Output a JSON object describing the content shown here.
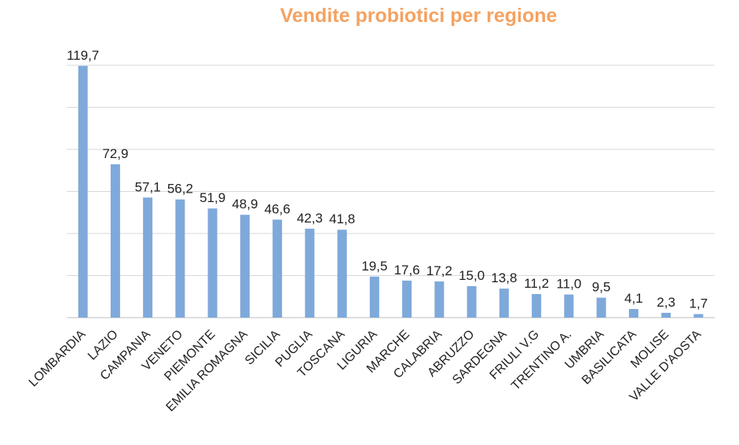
{
  "chart_data": {
    "type": "bar",
    "title": "Vendite probiotici per regione",
    "xlabel": "",
    "ylabel": "",
    "ylim": [
      0,
      120
    ],
    "grid": true,
    "categories": [
      "LOMBARDIA",
      "LAZIO",
      "CAMPANIA",
      "VENETO",
      "PIEMONTE",
      "EMILIA ROMAGNA",
      "SICILIA",
      "PUGLIA",
      "TOSCANA",
      "LIGURIA",
      "MARCHE",
      "CALABRIA",
      "ABRUZZO",
      "SARDEGNA",
      "FRIULI V.G",
      "TRENTINO A.",
      "UMBRIA",
      "BASILICATA",
      "MOLISE",
      "VALLE D'AOSTA"
    ],
    "values": [
      119.7,
      72.9,
      57.1,
      56.2,
      51.9,
      48.9,
      46.6,
      42.3,
      41.8,
      19.5,
      17.6,
      17.2,
      15.0,
      13.8,
      11.2,
      11.0,
      9.5,
      4.1,
      2.3,
      1.7
    ],
    "value_labels": [
      "119,7",
      "72,9",
      "57,1",
      "56,2",
      "51,9",
      "48,9",
      "46,6",
      "42,3",
      "41,8",
      "19,5",
      "17,6",
      "17,2",
      "15,0",
      "13,8",
      "11,2",
      "11,0",
      "9,5",
      "4,1",
      "2,3",
      "1,7"
    ],
    "colors": {
      "bar": "#7ea9da",
      "title": "#f4a261"
    }
  }
}
